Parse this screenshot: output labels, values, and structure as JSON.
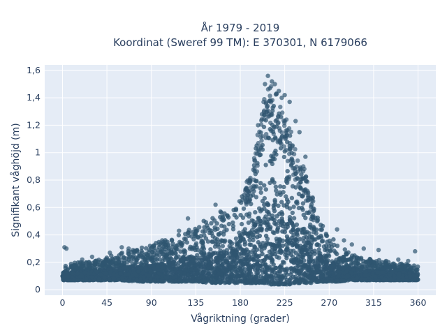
{
  "chart_data": {
    "type": "scatter",
    "title_line1": "År 1979 - 2019",
    "title_line2": "Koordinat (Sweref 99 TM): E 370301, N 6179066",
    "xlabel": "Vågriktning (grader)",
    "ylabel": "Signifikant våghöjd (m)",
    "xlim": [
      -18,
      378
    ],
    "ylim": [
      -0.04,
      1.64
    ],
    "xticks": [
      0,
      45,
      90,
      135,
      180,
      225,
      270,
      315,
      360
    ],
    "yticks": [
      0,
      0.2,
      0.4,
      0.6,
      0.8,
      1,
      1.2,
      1.4,
      1.6
    ],
    "ytick_labels": [
      "0",
      "0,2",
      "0,4",
      "0,6",
      "0,8",
      "1",
      "1,2",
      "1,4",
      "1,6"
    ],
    "grid": true,
    "background": "#e5ecf6",
    "marker_color": "#2f5570",
    "envelope": {
      "x": [
        0,
        15,
        30,
        45,
        60,
        75,
        90,
        105,
        120,
        135,
        150,
        165,
        180,
        190,
        200,
        205,
        210,
        215,
        220,
        225,
        230,
        235,
        240,
        245,
        250,
        255,
        260,
        270,
        280,
        290,
        300,
        315,
        330,
        345,
        360
      ],
      "upper": [
        0.18,
        0.2,
        0.21,
        0.24,
        0.27,
        0.3,
        0.33,
        0.37,
        0.42,
        0.47,
        0.53,
        0.58,
        0.66,
        0.8,
        1.2,
        1.35,
        1.45,
        1.4,
        1.3,
        1.2,
        1.15,
        1.0,
        0.9,
        0.85,
        0.72,
        0.6,
        0.5,
        0.4,
        0.33,
        0.27,
        0.24,
        0.22,
        0.21,
        0.19,
        0.18
      ],
      "lower": [
        0.07,
        0.07,
        0.07,
        0.07,
        0.07,
        0.06,
        0.06,
        0.06,
        0.06,
        0.06,
        0.05,
        0.05,
        0.05,
        0.05,
        0.05,
        0.05,
        0.04,
        0.04,
        0.04,
        0.04,
        0.04,
        0.05,
        0.05,
        0.05,
        0.05,
        0.05,
        0.06,
        0.06,
        0.06,
        0.07,
        0.07,
        0.07,
        0.07,
        0.07,
        0.07
      ]
    },
    "outliers": [
      {
        "x": 2,
        "y": 0.31
      },
      {
        "x": 4,
        "y": 0.3
      },
      {
        "x": 205,
        "y": 1.5
      },
      {
        "x": 208,
        "y": 1.56
      },
      {
        "x": 212,
        "y": 1.52
      },
      {
        "x": 215,
        "y": 1.5
      },
      {
        "x": 219,
        "y": 1.45
      },
      {
        "x": 225,
        "y": 1.42
      },
      {
        "x": 230,
        "y": 1.37
      },
      {
        "x": 210,
        "y": 1.47
      },
      {
        "x": 222,
        "y": 1.4
      },
      {
        "x": 236,
        "y": 1.23
      },
      {
        "x": 240,
        "y": 1.15
      },
      {
        "x": 246,
        "y": 0.97
      },
      {
        "x": 198,
        "y": 1.2
      },
      {
        "x": 202,
        "y": 1.28
      },
      {
        "x": 160,
        "y": 0.57
      },
      {
        "x": 155,
        "y": 0.62
      },
      {
        "x": 118,
        "y": 0.43
      },
      {
        "x": 127,
        "y": 0.52
      },
      {
        "x": 101,
        "y": 0.36
      },
      {
        "x": 60,
        "y": 0.31
      },
      {
        "x": 67,
        "y": 0.3
      },
      {
        "x": 278,
        "y": 0.44
      },
      {
        "x": 285,
        "y": 0.36
      },
      {
        "x": 293,
        "y": 0.33
      },
      {
        "x": 305,
        "y": 0.3
      },
      {
        "x": 320,
        "y": 0.29
      },
      {
        "x": 340,
        "y": 0.22
      },
      {
        "x": 357,
        "y": 0.28
      },
      {
        "x": 350,
        "y": 0.21
      },
      {
        "x": 30,
        "y": 0.24
      },
      {
        "x": 20,
        "y": 0.22
      },
      {
        "x": 48,
        "y": 0.27
      }
    ]
  }
}
